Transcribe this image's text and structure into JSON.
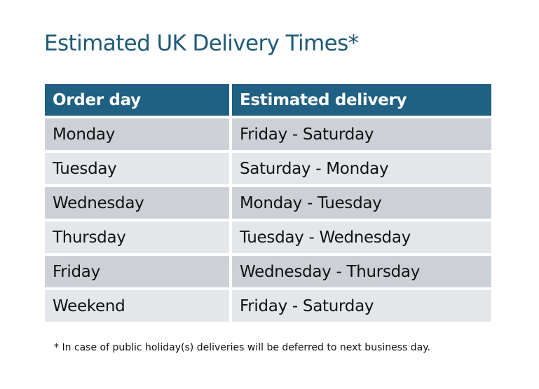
{
  "title": "Estimated UK Delivery Times*",
  "table": {
    "headers": [
      "Order day",
      "Estimated delivery"
    ],
    "rows": [
      [
        "Monday",
        "Friday - Saturday"
      ],
      [
        "Tuesday",
        "Saturday - Monday"
      ],
      [
        "Wednesday",
        "Monday - Tuesday"
      ],
      [
        "Thursday",
        "Tuesday - Wednesday"
      ],
      [
        "Friday",
        "Wednesday - Thursday"
      ],
      [
        "Weekend",
        "Friday - Saturday"
      ]
    ]
  },
  "footnote": "* In case of public holiday(s) deliveries will be deferred to next business day.",
  "colors": {
    "header": "#1f6083",
    "title": "#1f5a78",
    "row_dark": "#cdd1d7",
    "row_light": "#e4e7ea"
  }
}
